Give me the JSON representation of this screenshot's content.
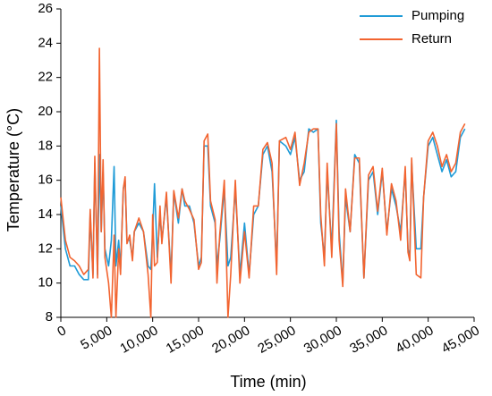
{
  "chart_data": {
    "type": "line",
    "x_label": "Time (min)",
    "y_label": "Temperature (°C)",
    "x": [
      0,
      500,
      1000,
      1500,
      2000,
      2500,
      3000,
      3200,
      3500,
      3700,
      4000,
      4200,
      4400,
      4600,
      4800,
      5200,
      5500,
      5800,
      6000,
      6300,
      6500,
      6800,
      7000,
      7200,
      7500,
      7800,
      8000,
      8500,
      9000,
      9500,
      9800,
      10000,
      10200,
      10500,
      10800,
      11000,
      11500,
      12000,
      12300,
      12800,
      13200,
      13500,
      14000,
      14500,
      15000,
      15300,
      15600,
      16000,
      16300,
      16800,
      17000,
      17300,
      17800,
      18200,
      18500,
      19000,
      19500,
      20000,
      20500,
      21000,
      21500,
      22000,
      22500,
      23000,
      23500,
      23800,
      24500,
      25000,
      25500,
      26000,
      26500,
      27000,
      27500,
      28000,
      28300,
      28700,
      29000,
      29500,
      30000,
      30300,
      30700,
      31000,
      31500,
      32000,
      32500,
      33000,
      33500,
      34000,
      34500,
      35000,
      35500,
      36000,
      36500,
      37000,
      37500,
      37800,
      38000,
      38200,
      38700,
      39200,
      39500,
      40000,
      40500,
      41000,
      41500,
      42000,
      42500,
      43000,
      43500,
      44000
    ],
    "series": [
      {
        "name": "Pumping",
        "color": "#1f9bd7",
        "values": [
          14.5,
          12,
          11,
          11,
          10.5,
          10.2,
          10.2,
          14,
          10.5,
          17,
          10.5,
          17.5,
          13,
          16.5,
          12,
          11,
          12.5,
          16.8,
          11,
          12.5,
          10.8,
          15.5,
          16,
          12.5,
          12.5,
          11.5,
          13,
          13.5,
          13,
          11,
          10.8,
          13,
          15.8,
          11.5,
          14,
          12.5,
          15,
          10.5,
          15.3,
          13.5,
          15.5,
          14.5,
          14.5,
          13.5,
          11,
          11.5,
          18,
          18,
          14.5,
          13.5,
          11,
          12.5,
          15.5,
          11,
          11.5,
          15.5,
          10.5,
          13.5,
          10.5,
          14,
          14.5,
          17.5,
          18,
          16.5,
          11,
          18.3,
          18,
          17.5,
          18.5,
          16,
          16.5,
          19,
          18.8,
          19,
          13.5,
          11.5,
          16.5,
          12,
          19.5,
          13,
          10,
          15,
          13,
          17.5,
          17,
          10.3,
          16,
          16.5,
          14,
          16.5,
          13,
          15.5,
          14.5,
          13,
          16.5,
          12,
          11.5,
          17,
          12,
          12,
          15,
          18,
          18.5,
          17.5,
          16.5,
          17.2,
          16.2,
          16.5,
          18.5,
          19
        ]
      },
      {
        "name": "Return",
        "color": "#f26430",
        "values": [
          15,
          12.5,
          11.5,
          11.3,
          11,
          10.5,
          10.8,
          14.3,
          10.3,
          17.4,
          10.3,
          23.7,
          13,
          17.2,
          11.5,
          10,
          8,
          12.8,
          8,
          12,
          10.5,
          15.5,
          16.2,
          12.3,
          12.8,
          11.3,
          13,
          13.8,
          13,
          10.5,
          8,
          14,
          11,
          11.2,
          14.5,
          12.3,
          15.3,
          10,
          15.4,
          13.8,
          15.5,
          14.8,
          14.3,
          13.7,
          10.8,
          11.2,
          18.3,
          18.7,
          14.8,
          13.7,
          10,
          12.8,
          16,
          8,
          10.5,
          16,
          10,
          13,
          10.3,
          14.5,
          14.5,
          17.8,
          18.2,
          17,
          10.5,
          18.3,
          18.5,
          17.8,
          18.8,
          15.7,
          17,
          18.8,
          19,
          19,
          14,
          11,
          17,
          11.5,
          19.3,
          12.5,
          9.8,
          15.5,
          13,
          17.3,
          17.3,
          10.3,
          16.3,
          16.8,
          14.2,
          16.7,
          12.8,
          15.8,
          14.8,
          12.5,
          16.8,
          11.8,
          11.3,
          17.3,
          10.5,
          10.3,
          15,
          18.3,
          18.8,
          18,
          16.8,
          17.5,
          16.5,
          17,
          18.8,
          19.3
        ]
      }
    ],
    "xlim": [
      0,
      45000
    ],
    "xticks": [
      0,
      {
        "value": 5000,
        "label": "5,000"
      },
      {
        "value": 10000,
        "label": "10,000"
      },
      {
        "value": 15000,
        "label": "15,000"
      },
      {
        "value": 20000,
        "label": "20,000"
      },
      {
        "value": 25000,
        "label": "25,000"
      },
      {
        "value": 30000,
        "label": "30,000"
      },
      {
        "value": 35000,
        "label": "35,000"
      },
      {
        "value": 40000,
        "label": "40,000"
      },
      {
        "value": 45000,
        "label": "45,000"
      }
    ],
    "ylim": [
      8,
      26
    ],
    "yticks": [
      8,
      10,
      12,
      14,
      16,
      18,
      20,
      22,
      24,
      26
    ],
    "legend": "upper right"
  }
}
